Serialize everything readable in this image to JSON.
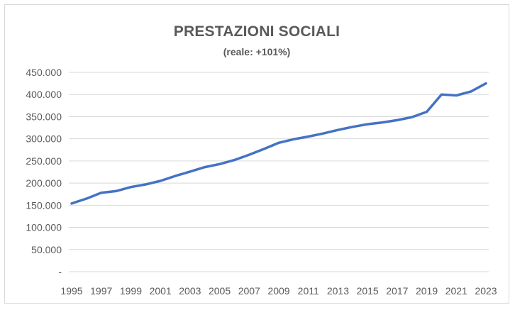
{
  "chart_data": {
    "type": "line",
    "title": "PRESTAZIONI SOCIALI",
    "subtitle": "(reale: +101%)",
    "xlabel": "",
    "ylabel": "",
    "ylim": [
      0,
      450000
    ],
    "y_ticks": [
      0,
      50000,
      100000,
      150000,
      200000,
      250000,
      300000,
      350000,
      400000,
      450000
    ],
    "y_tick_labels": [
      "-",
      "50.000",
      "100.000",
      "150.000",
      "200.000",
      "250.000",
      "300.000",
      "350.000",
      "400.000",
      "450.000"
    ],
    "x_tick_labels": [
      "1995",
      "1997",
      "1999",
      "2001",
      "2003",
      "2005",
      "2007",
      "2009",
      "2011",
      "2013",
      "2015",
      "2017",
      "2019",
      "2021",
      "2023"
    ],
    "grid": true,
    "legend": "none",
    "line_color": "#4472c4",
    "grid_color": "#d9d9d9",
    "series": [
      {
        "x": [
          1995,
          1996,
          1997,
          1998,
          1999,
          2000,
          2001,
          2002,
          2003,
          2004,
          2005,
          2006,
          2007,
          2008,
          2009,
          2010,
          2011,
          2012,
          2013,
          2014,
          2015,
          2016,
          2017,
          2018,
          2019,
          2020,
          2021,
          2022,
          2023
        ],
        "values": [
          154000,
          165000,
          178000,
          182000,
          191000,
          197000,
          205000,
          216000,
          226000,
          236000,
          243000,
          252000,
          264000,
          277000,
          291000,
          299000,
          305000,
          312000,
          320000,
          327000,
          333000,
          337000,
          342000,
          349000,
          361000,
          400000,
          398000,
          407000,
          425000
        ]
      }
    ]
  }
}
